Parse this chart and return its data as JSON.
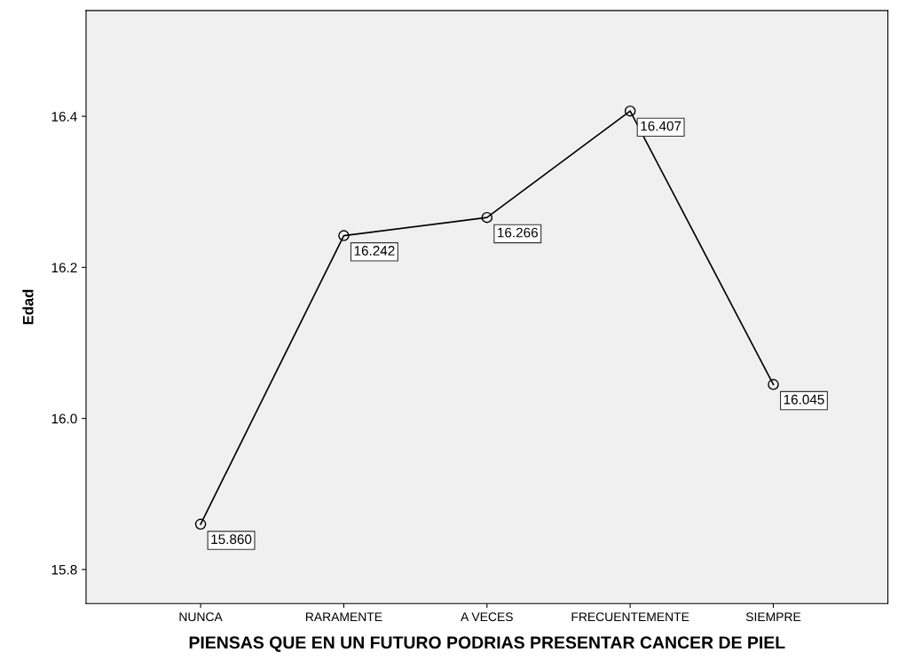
{
  "chart_data": {
    "type": "line",
    "xlabel": "PIENSAS QUE EN UN FUTURO PODRIAS PRESENTAR CANCER DE PIEL",
    "ylabel": "Edad",
    "categories": [
      "NUNCA",
      "RARAMENTE",
      "A VECES",
      "FRECUENTEMENTE",
      "SIEMPRE"
    ],
    "series": [
      {
        "color": "#000000",
        "values": [
          15.86,
          16.242,
          16.266,
          16.407,
          16.045
        ]
      }
    ],
    "value_labels": [
      "15.860",
      "16.242",
      "16.266",
      "16.407",
      "16.045"
    ],
    "ylim": [
      15.755,
      16.54
    ],
    "yticks": [
      {
        "value": 15.8,
        "label": "15.8"
      },
      {
        "value": 16.0,
        "label": "16.0"
      },
      {
        "value": 16.2,
        "label": "16.2"
      },
      {
        "value": 16.4,
        "label": "16.4"
      }
    ],
    "marker": "circle",
    "line_style": "solid",
    "grid": false,
    "legend": false
  }
}
